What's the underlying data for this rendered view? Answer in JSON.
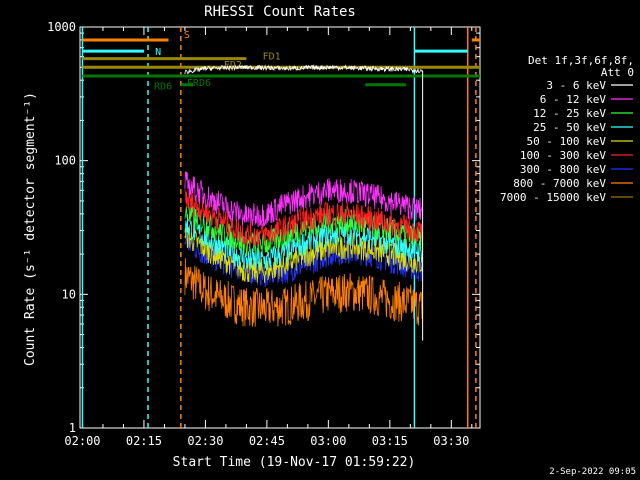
{
  "chart_data": {
    "type": "line",
    "title": "RHESSI Count Rates",
    "xlabel": "Start Time (19-Nov-17 01:59:22)",
    "ylabel": "Count Rate (s⁻¹ detector segment⁻¹)",
    "x_ticks": [
      "02:00",
      "02:15",
      "02:30",
      "02:45",
      "03:00",
      "03:15",
      "03:30"
    ],
    "y_ticks": [
      "1",
      "10",
      "100",
      "1000"
    ],
    "ylog": true,
    "xlim_minutes": [
      -0.6,
      97
    ],
    "ylim": [
      1,
      1000
    ],
    "legend_header": [
      "Det 1f,3f,6f,8f,",
      "Att 0"
    ],
    "legend_position": "right",
    "series": [
      {
        "name": "3 - 6 keV",
        "color": "#ffffff",
        "x": [
          25,
          30,
          40,
          50,
          60,
          70,
          80,
          83
        ],
        "y": [
          460,
          490,
          500,
          490,
          500,
          490,
          480,
          470
        ]
      },
      {
        "name": "6 - 12 keV",
        "color": "#ff33ff",
        "x": [
          25,
          30,
          35,
          40,
          45,
          50,
          55,
          60,
          65,
          70,
          75,
          80,
          83
        ],
        "y": [
          68,
          55,
          45,
          38,
          40,
          48,
          55,
          60,
          60,
          55,
          50,
          45,
          42
        ]
      },
      {
        "name": "12 - 25 keV",
        "color": "#33ff33",
        "x": [
          25,
          30,
          35,
          40,
          45,
          50,
          55,
          60,
          65,
          70,
          75,
          80,
          83
        ],
        "y": [
          40,
          34,
          28,
          24,
          24,
          28,
          32,
          35,
          35,
          32,
          30,
          27,
          25
        ]
      },
      {
        "name": "25 - 50 keV",
        "color": "#33ffff",
        "x": [
          25,
          30,
          35,
          40,
          45,
          50,
          55,
          60,
          65,
          70,
          75,
          80,
          83
        ],
        "y": [
          33,
          27,
          22,
          18,
          18,
          21,
          25,
          28,
          29,
          27,
          24,
          22,
          21
        ]
      },
      {
        "name": "50 - 100 keV",
        "color": "#dddd00",
        "x": [
          25,
          30,
          35,
          40,
          45,
          50,
          55,
          60,
          65,
          70,
          75,
          80,
          83
        ],
        "y": [
          28,
          22,
          18,
          15,
          15,
          17,
          20,
          22,
          23,
          22,
          20,
          18,
          17
        ]
      },
      {
        "name": "100 - 300 keV",
        "color": "#ff2222",
        "x": [
          25,
          30,
          35,
          40,
          45,
          50,
          55,
          60,
          65,
          70,
          75,
          80,
          83
        ],
        "y": [
          52,
          42,
          34,
          28,
          28,
          32,
          37,
          40,
          40,
          37,
          34,
          31,
          29
        ]
      },
      {
        "name": "300 - 800 keV",
        "color": "#2233ff",
        "x": [
          25,
          30,
          35,
          40,
          45,
          50,
          55,
          60,
          65,
          70,
          75,
          80,
          83
        ],
        "y": [
          25,
          20,
          17,
          15,
          14,
          15,
          17,
          20,
          21,
          20,
          18,
          16,
          15
        ]
      },
      {
        "name": "800 - 7000 keV",
        "color": "#ff8000",
        "x": [
          25,
          30,
          35,
          40,
          45,
          50,
          55,
          60,
          65,
          70,
          75,
          80,
          83
        ],
        "y": [
          14,
          10.5,
          9,
          8,
          7.8,
          8.2,
          9,
          10,
          10.5,
          10,
          9,
          8.5,
          8
        ]
      },
      {
        "name": "7000 - 15000 keV",
        "color": "#997700",
        "x": [],
        "y": []
      }
    ],
    "flag_bars": [
      {
        "label": "S",
        "color": "#ff8000",
        "x0": 0,
        "x1": 21,
        "y": 800
      },
      {
        "label": "N",
        "color": "#33ffff",
        "x0": 0,
        "x1": 15,
        "y": 660
      },
      {
        "label": "",
        "color": "#33ffff",
        "x0": 81,
        "x1": 94,
        "y": 660
      },
      {
        "label": "FD1",
        "color": "#998800",
        "x0": 0,
        "x1": 40,
        "y": 580
      },
      {
        "label": "FD2",
        "color": "#998800",
        "x0": 0,
        "x1": 97,
        "y": 500
      },
      {
        "label": "RD6",
        "color": "#007700",
        "x0": 0,
        "x1": 97,
        "y": 430
      },
      {
        "label": "",
        "color": "#007700",
        "x0": 24,
        "x1": 27,
        "y": 370
      },
      {
        "label": "",
        "color": "#007700",
        "x0": 69,
        "x1": 79,
        "y": 370
      }
    ],
    "extra_labels": [
      "FRD6"
    ],
    "orange_short_bar": {
      "x0": 95,
      "x1": 97,
      "y": 800
    },
    "vertical_lines": [
      {
        "x": 0,
        "color": "#33ffff",
        "style": "solid"
      },
      {
        "x": 16,
        "color": "#33ffff",
        "style": "dashed"
      },
      {
        "x": 24,
        "color": "#ff8000",
        "style": "dashed"
      },
      {
        "x": 81,
        "color": "#33ffff",
        "style": "solid"
      },
      {
        "x": 94,
        "color": "#ff8000",
        "style": "solid"
      },
      {
        "x": 96,
        "color": "#ff8000",
        "style": "dashed"
      }
    ]
  },
  "footer_timestamp": "2-Sep-2022 09:05"
}
